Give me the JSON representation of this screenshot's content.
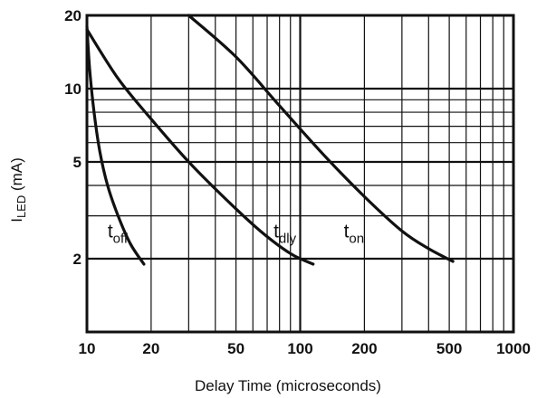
{
  "chart_data": {
    "type": "line",
    "title": "",
    "xlabel": "Delay Time (microseconds)",
    "ylabel": {
      "main": "I",
      "sub": "LED",
      "unit": " (mA)"
    },
    "x_scale": "log",
    "y_scale": "log",
    "xlim": [
      10,
      1000
    ],
    "ylim": [
      1,
      20
    ],
    "x_ticks": [
      {
        "value": 10,
        "label": "10"
      },
      {
        "value": 20,
        "label": "20"
      },
      {
        "value": 50,
        "label": "50"
      },
      {
        "value": 100,
        "label": "100"
      },
      {
        "value": 200,
        "label": "200"
      },
      {
        "value": 500,
        "label": "500"
      },
      {
        "value": 1000,
        "label": "1000"
      }
    ],
    "y_ticks": [
      {
        "value": 2,
        "label": "2"
      },
      {
        "value": 5,
        "label": "5"
      },
      {
        "value": 10,
        "label": "10"
      },
      {
        "value": 20,
        "label": "20"
      }
    ],
    "grid": true,
    "series": [
      {
        "name": {
          "main": "t",
          "sub": "off"
        },
        "x": [
          10,
          10.3,
          10.8,
          11.5,
          12.5,
          14,
          16,
          18.5
        ],
        "y": [
          18,
          12,
          8,
          5.5,
          4,
          3,
          2.3,
          1.9
        ]
      },
      {
        "name": {
          "main": "t",
          "sub": "dly"
        },
        "x": [
          10,
          14,
          20,
          30,
          45,
          65,
          90,
          115
        ],
        "y": [
          17.5,
          11,
          7.5,
          5,
          3.5,
          2.6,
          2.1,
          1.9
        ]
      },
      {
        "name": {
          "main": "t",
          "sub": "on"
        },
        "x": [
          30,
          50,
          80,
          130,
          200,
          300,
          400,
          520
        ],
        "y": [
          20,
          13.5,
          8.5,
          5.3,
          3.6,
          2.6,
          2.2,
          1.95
        ]
      }
    ]
  }
}
